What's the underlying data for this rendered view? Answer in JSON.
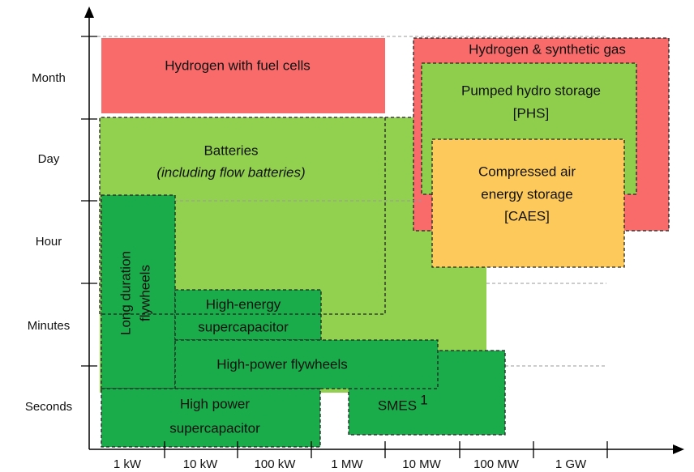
{
  "y_axis": {
    "labels": [
      "Month",
      "Day",
      "Hour",
      "Minutes",
      "Seconds"
    ]
  },
  "x_axis": {
    "labels": [
      "1 kW",
      "10 kW",
      "100 kW",
      "1 MW",
      "10 MW",
      "100 MW",
      "1 GW"
    ]
  },
  "regions": [
    {
      "lines": [
        "Hydrogen with fuel cells"
      ]
    },
    {
      "lines": [
        "Hydrogen & synthetic gas"
      ]
    },
    {
      "lines": [
        "Batteries",
        "(including flow batteries)"
      ]
    },
    {
      "lines": [
        "Pumped hydro storage",
        "[PHS]"
      ]
    },
    {
      "lines": [
        "Compressed air",
        "energy storage",
        "[CAES]"
      ]
    },
    {
      "lines": [
        "Long duration",
        "flywheels"
      ]
    },
    {
      "lines": [
        "High-energy",
        "supercapacitor"
      ]
    },
    {
      "lines": [
        "High-power flywheels"
      ]
    },
    {
      "lines": [
        "High power",
        "supercapacitor"
      ]
    },
    {
      "lines": [
        "SMES"
      ],
      "footnote": "1"
    }
  ]
}
